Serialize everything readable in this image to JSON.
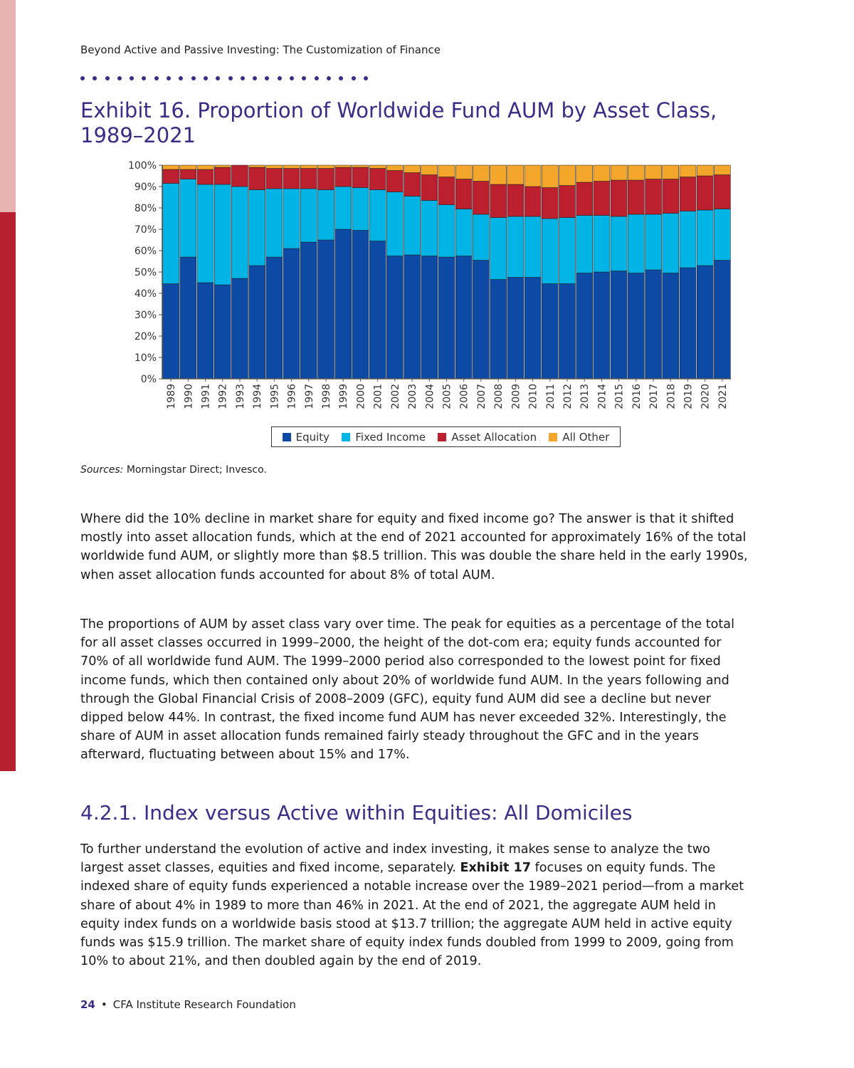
{
  "running_head": "Beyond Active and Passive Investing: The Customization of Finance",
  "exhibit_title": "Exhibit 16. Proportion of Worldwide Fund AUM by Asset Class, 1989–2021",
  "colors": {
    "title_purple": "#3d2b87",
    "equity": "#0d4aa6",
    "fixed_income": "#00b4e6",
    "asset_allocation": "#bc1f2e",
    "all_other": "#f4a62a"
  },
  "chart_data": {
    "type": "bar",
    "stacked": true,
    "categories": [
      "1989",
      "1990",
      "1991",
      "1992",
      "1993",
      "1994",
      "1995",
      "1996",
      "1997",
      "1998",
      "1999",
      "2000",
      "2001",
      "2002",
      "2003",
      "2004",
      "2005",
      "2006",
      "2007",
      "2008",
      "2009",
      "2010",
      "2011",
      "2012",
      "2013",
      "2014",
      "2015",
      "2016",
      "2017",
      "2018",
      "2019",
      "2020",
      "2021"
    ],
    "series": [
      {
        "name": "Equity",
        "color": "#0d4aa6",
        "values": [
          44.5,
          57,
          45,
          44,
          47,
          53,
          57,
          61,
          64,
          65,
          70,
          69.5,
          64.5,
          57.5,
          58,
          57.5,
          57,
          57.5,
          55.5,
          46.5,
          47.5,
          47.5,
          44.5,
          44.5,
          49.5,
          50,
          50.5,
          49.5,
          51,
          49.5,
          52,
          53,
          55.5
        ]
      },
      {
        "name": "Fixed Income",
        "color": "#00b4e6",
        "values": [
          47,
          36.5,
          46,
          47,
          43,
          35.5,
          32,
          28,
          25,
          23.5,
          20,
          20,
          24,
          30,
          27.5,
          26,
          24.5,
          22,
          21.5,
          29,
          28.5,
          28.5,
          30.5,
          31,
          27,
          26.5,
          25.5,
          27.5,
          26,
          28,
          26.5,
          26,
          24
        ]
      },
      {
        "name": "Asset Allocation",
        "color": "#bc1f2e",
        "values": [
          6.5,
          4.5,
          7,
          8,
          10,
          10.5,
          9.5,
          9.5,
          9.5,
          10,
          9,
          9.5,
          10,
          10,
          11,
          12,
          13,
          14,
          15.5,
          15.5,
          15,
          14,
          14.5,
          15,
          15.5,
          16,
          17,
          16,
          16.5,
          16,
          16,
          16,
          16
        ]
      },
      {
        "name": "All Other",
        "color": "#f4a62a",
        "values": [
          2,
          2,
          2,
          1,
          0,
          1,
          1.5,
          1.5,
          1.5,
          1.5,
          1,
          1,
          1.5,
          2.5,
          3.5,
          4.5,
          5.5,
          6.5,
          7.5,
          9,
          9,
          10,
          10.5,
          9.5,
          8,
          7.5,
          7,
          7,
          6.5,
          6.5,
          5.5,
          5,
          4.5
        ]
      }
    ],
    "ylim": [
      0,
      100
    ],
    "y_ticks": [
      "0%",
      "10%",
      "20%",
      "30%",
      "40%",
      "50%",
      "60%",
      "70%",
      "80%",
      "90%",
      "100%"
    ],
    "legend_position": "bottom",
    "grid": false
  },
  "legend": [
    "Equity",
    "Fixed Income",
    "Asset Allocation",
    "All Other"
  ],
  "sources_label": "Sources:",
  "sources_text": " Morningstar Direct; Invesco.",
  "para1": "Where did the 10% decline in market share for equity and fixed income go? The answer is that it shifted mostly into asset allocation funds, which at the end of 2021 accounted for approx­imately 16% of the total worldwide fund AUM, or slightly more than $8.5 trillion. This was double the share held in the early 1990s, when asset allocation funds accounted for about 8% of total AUM.",
  "para2": "The proportions of AUM by asset class vary over time. The peak for equities as a percentage of the total for all asset classes occurred in 1999–2000, the height of the dot-com era; equity funds accounted for 70% of all worldwide fund AUM. The 1999–2000 period also corresponded to the lowest point for fixed income funds, which then contained only about 20% of worldwide fund AUM. In the years following and through the Global Financial Crisis of 2008–2009 (GFC), equity fund AUM did see a decline but never dipped below 44%. In contrast, the fixed income fund AUM has never exceeded 32%. Interestingly, the share of AUM in asset allocation funds remained fairly steady throughout the GFC and in the years afterward, fluctuating between about 15% and 17%.",
  "section_heading": "4.2.1. Index versus Active within Equities: All Domiciles",
  "para3_before": "To further understand the evolution of active and index investing, it makes sense to analyze the two largest asset classes, equities and fixed income, separately. ",
  "para3_bold": "Exhibit 17",
  "para3_after": " focuses on equity funds. The indexed share of equity funds experienced a notable increase over the 1989–2021 period—from a market share of about 4% in 1989 to more than 46% in 2021. At the end of 2021, the aggregate AUM held in equity index funds on a worldwide basis stood at $13.7 trillion; the aggregate AUM held in active equity funds was $15.9 trillion. The market share of equity index funds doubled from 1999 to 2009, going from 10% to about 21%, and then doubled again by the end of 2019.",
  "footer": {
    "page_number": "24",
    "publisher": "CFA Institute Research Foundation"
  }
}
